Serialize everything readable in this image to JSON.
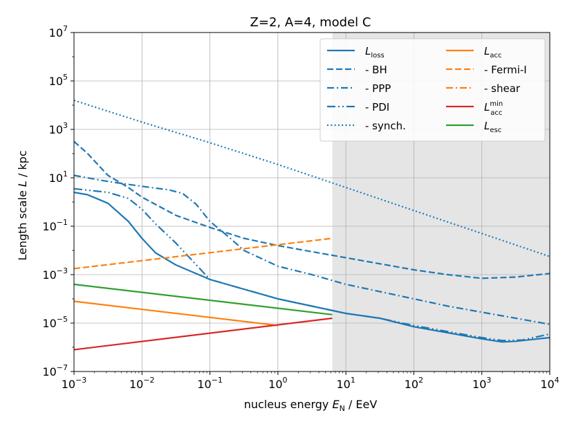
{
  "chart_data": {
    "type": "line",
    "title": "Z=2, A=4, model C",
    "xlabel": {
      "main": "nucleus energy ",
      "var": "E",
      "sub": "N",
      "unit": " / EeV"
    },
    "ylabel": {
      "main": "Length scale ",
      "var": "L",
      "unit": " / kpc"
    },
    "xscale": "log",
    "yscale": "log",
    "xlim_exp": [
      -3,
      4
    ],
    "ylim_exp": [
      -7,
      7
    ],
    "x_ticks": [
      {
        "base": "10",
        "exp": "−3"
      },
      {
        "base": "10",
        "exp": "−2"
      },
      {
        "base": "10",
        "exp": "−1"
      },
      {
        "base": "10",
        "exp": "0"
      },
      {
        "base": "10",
        "exp": "1"
      },
      {
        "base": "10",
        "exp": "2"
      },
      {
        "base": "10",
        "exp": "3"
      },
      {
        "base": "10",
        "exp": "4"
      }
    ],
    "y_ticks": [
      {
        "exp_val": -7,
        "base": "10",
        "exp": "−7"
      },
      {
        "exp_val": -5,
        "base": "10",
        "exp": "−5"
      },
      {
        "exp_val": -3,
        "base": "10",
        "exp": "−3"
      },
      {
        "exp_val": -1,
        "base": "10",
        "exp": "−1"
      },
      {
        "exp_val": 1,
        "base": "10",
        "exp": "1"
      },
      {
        "exp_val": 3,
        "base": "10",
        "exp": "3"
      },
      {
        "exp_val": 5,
        "base": "10",
        "exp": "5"
      },
      {
        "exp_val": 7,
        "base": "10",
        "exp": "7"
      }
    ],
    "grid": true,
    "shaded_region_x_exp": [
      0.8,
      4
    ],
    "legend_position": "top-right",
    "colors": {
      "blue": "#1f77b4",
      "orange": "#ff7f0e",
      "red": "#d62728",
      "green": "#2ca02c",
      "shade": "#e5e5e5"
    },
    "series": [
      {
        "id": "loss",
        "name": "L_loss",
        "legend": {
          "prefix": "",
          "var": "L",
          "sub": "loss",
          "sup": ""
        },
        "color": "blue",
        "dash": "solid",
        "points": [
          [
            -3,
            0.4
          ],
          [
            -2.8,
            0.3
          ],
          [
            -2.5,
            -0.05
          ],
          [
            -2.2,
            -0.8
          ],
          [
            -2,
            -1.5
          ],
          [
            -1.8,
            -2.1
          ],
          [
            -1.5,
            -2.6
          ],
          [
            -1,
            -3.2
          ],
          [
            -0.5,
            -3.6
          ],
          [
            0,
            -4
          ],
          [
            0.5,
            -4.3
          ],
          [
            1,
            -4.6
          ],
          [
            1.5,
            -4.8
          ],
          [
            2,
            -5.15
          ],
          [
            2.5,
            -5.4
          ],
          [
            3,
            -5.65
          ],
          [
            3.3,
            -5.78
          ],
          [
            3.5,
            -5.75
          ],
          [
            4,
            -5.6
          ]
        ]
      },
      {
        "id": "bh",
        "name": "- BH",
        "legend": {
          "prefix": "  - BH",
          "var": "",
          "sub": "",
          "sup": ""
        },
        "color": "blue",
        "dash": "dashed",
        "points": [
          [
            -3,
            2.5
          ],
          [
            -2.8,
            2
          ],
          [
            -2.5,
            1.1
          ],
          [
            -2.2,
            0.6
          ],
          [
            -2,
            0.2
          ],
          [
            -1.5,
            -0.55
          ],
          [
            -1,
            -1.05
          ],
          [
            -0.5,
            -1.5
          ],
          [
            0,
            -1.8
          ],
          [
            0.5,
            -2.05
          ],
          [
            1,
            -2.3
          ],
          [
            1.5,
            -2.55
          ],
          [
            2,
            -2.8
          ],
          [
            2.5,
            -3
          ],
          [
            3,
            -3.15
          ],
          [
            3.5,
            -3.1
          ],
          [
            4,
            -2.95
          ]
        ]
      },
      {
        "id": "ppp",
        "name": "- PPP",
        "legend": {
          "prefix": "  - PPP",
          "var": "",
          "sub": "",
          "sup": ""
        },
        "color": "blue",
        "dash": "dashdot",
        "points": [
          [
            -3,
            1.1
          ],
          [
            -2.5,
            0.85
          ],
          [
            -2,
            0.65
          ],
          [
            -1.6,
            0.5
          ],
          [
            -1.4,
            0.35
          ],
          [
            -1.2,
            -0.1
          ],
          [
            -1,
            -0.8
          ],
          [
            -0.7,
            -1.5
          ],
          [
            -0.5,
            -2
          ],
          [
            0,
            -2.65
          ],
          [
            0.5,
            -3
          ],
          [
            1,
            -3.4
          ],
          [
            1.5,
            -3.7
          ],
          [
            2,
            -4
          ],
          [
            2.5,
            -4.3
          ],
          [
            3,
            -4.55
          ],
          [
            3.5,
            -4.8
          ],
          [
            4,
            -5.05
          ]
        ]
      },
      {
        "id": "pdi",
        "name": "- PDI",
        "legend": {
          "prefix": "  - PDI",
          "var": "",
          "sub": "",
          "sup": ""
        },
        "color": "blue",
        "dash": "pdi",
        "points": [
          [
            -3,
            0.55
          ],
          [
            -2.5,
            0.4
          ],
          [
            -2.2,
            0.15
          ],
          [
            -2,
            -0.3
          ],
          [
            -1.8,
            -0.9
          ],
          [
            -1.5,
            -1.7
          ],
          [
            -1,
            -3.2
          ],
          [
            -0.5,
            -3.6
          ],
          [
            0,
            -4
          ],
          [
            0.5,
            -4.3
          ],
          [
            1,
            -4.6
          ],
          [
            1.5,
            -4.8
          ],
          [
            2,
            -5.1
          ],
          [
            2.5,
            -5.35
          ],
          [
            3,
            -5.6
          ],
          [
            3.3,
            -5.72
          ],
          [
            3.6,
            -5.7
          ],
          [
            4,
            -5.45
          ]
        ]
      },
      {
        "id": "synch",
        "name": "- synch.",
        "legend": {
          "prefix": "  - synch.",
          "var": "",
          "sub": "",
          "sup": ""
        },
        "color": "blue",
        "dash": "dotted",
        "points": [
          [
            -3,
            4.2
          ],
          [
            -2,
            3.3
          ],
          [
            -1,
            2.45
          ],
          [
            0,
            1.55
          ],
          [
            1,
            0.6
          ],
          [
            2,
            -0.35
          ],
          [
            3,
            -1.3
          ],
          [
            4,
            -2.25
          ]
        ]
      },
      {
        "id": "acc",
        "name": "L_acc",
        "legend": {
          "prefix": "",
          "var": "L",
          "sub": "acc",
          "sup": ""
        },
        "color": "orange",
        "dash": "solid",
        "points": [
          [
            -3,
            -4.1
          ],
          [
            0,
            -5.1
          ]
        ]
      },
      {
        "id": "fermi",
        "name": "- Fermi-I",
        "legend": {
          "prefix": "  - Fermi-I",
          "var": "",
          "sub": "",
          "sup": ""
        },
        "color": "orange",
        "dash": "dashed",
        "points": [
          [
            -3,
            -2.75
          ],
          [
            0.8,
            -1.5
          ]
        ]
      },
      {
        "id": "shear",
        "name": "- shear",
        "legend": {
          "prefix": "  - shear",
          "var": "",
          "sub": "",
          "sup": ""
        },
        "color": "orange",
        "dash": "dashdot",
        "points": []
      },
      {
        "id": "accmin",
        "name": "L_acc^min",
        "legend": {
          "prefix": "",
          "var": "L",
          "sub": "acc",
          "sup": "min"
        },
        "color": "red",
        "dash": "solid",
        "points": [
          [
            -3,
            -6.1
          ],
          [
            0.8,
            -4.8
          ]
        ]
      },
      {
        "id": "esc",
        "name": "L_esc",
        "legend": {
          "prefix": "",
          "var": "L",
          "sub": "esc",
          "sup": ""
        },
        "color": "green",
        "dash": "solid",
        "points": [
          [
            -3,
            -3.4
          ],
          [
            0.8,
            -4.65
          ]
        ]
      }
    ]
  }
}
